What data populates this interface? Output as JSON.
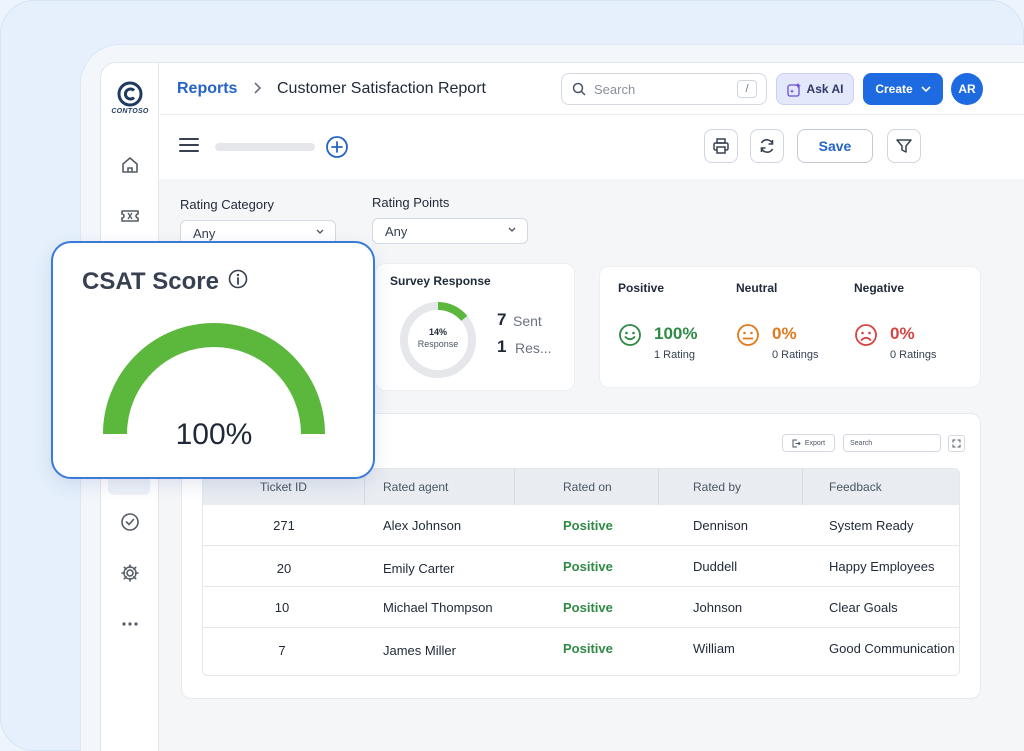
{
  "app": {
    "logo_text": "CONTOSO",
    "breadcrumb": {
      "parent": "Reports",
      "current": "Customer Satisfaction Report"
    },
    "search": {
      "placeholder": "Search",
      "shortcut": "/"
    },
    "ask_ai_label": "Ask AI",
    "create_label": "Create",
    "avatar_initials": "AR",
    "accent_color": "#1e6ae0"
  },
  "toolbar": {
    "save_label": "Save"
  },
  "sidebar": {
    "items": [
      {
        "icon": "home-icon"
      },
      {
        "icon": "ticket-icon"
      },
      {
        "icon": "check-circle-icon"
      },
      {
        "icon": "gear-icon"
      },
      {
        "icon": "more-horizontal-icon"
      }
    ]
  },
  "filters": [
    {
      "label": "Rating Category",
      "value": "Any"
    },
    {
      "label": "Rating Points",
      "value": "Any"
    }
  ],
  "survey": {
    "title": "Survey Response",
    "donut_percent": "14%",
    "donut_label": "Response",
    "donut_fraction": 0.14,
    "sent_count": "7",
    "sent_label": "Sent",
    "responses_count": "1",
    "responses_label": "Res..."
  },
  "sentiments": [
    {
      "title": "Positive",
      "percent": "100%",
      "count": "1 Rating",
      "color": "#2f8a45",
      "icon": "smile-face-icon"
    },
    {
      "title": "Neutral",
      "percent": "0%",
      "count": "0 Ratings",
      "color": "#e07a1f",
      "icon": "neutral-face-icon"
    },
    {
      "title": "Negative",
      "percent": "0%",
      "count": "0 Ratings",
      "color": "#d64545",
      "icon": "sad-face-icon"
    }
  ],
  "table": {
    "export_label": "Export",
    "search_placeholder": "Search",
    "columns": [
      "Ticket ID",
      "Rated agent",
      "Rated on",
      "Rated by",
      "Feedback"
    ],
    "rows": [
      [
        "271",
        "Alex Johnson",
        "Positive",
        "Dennison",
        "System Ready"
      ],
      [
        "20",
        "Emily Carter",
        "Positive",
        "Duddell",
        "Happy Employees"
      ],
      [
        "10",
        "Michael Thompson",
        "Positive",
        "Johnson",
        "Clear Goals"
      ],
      [
        "7",
        "James Miller",
        "Positive",
        "William",
        "Good Communication"
      ]
    ]
  },
  "csat": {
    "title": "CSAT Score",
    "value": "100%",
    "fraction": 1.0,
    "gauge_color": "#5cb83c"
  }
}
